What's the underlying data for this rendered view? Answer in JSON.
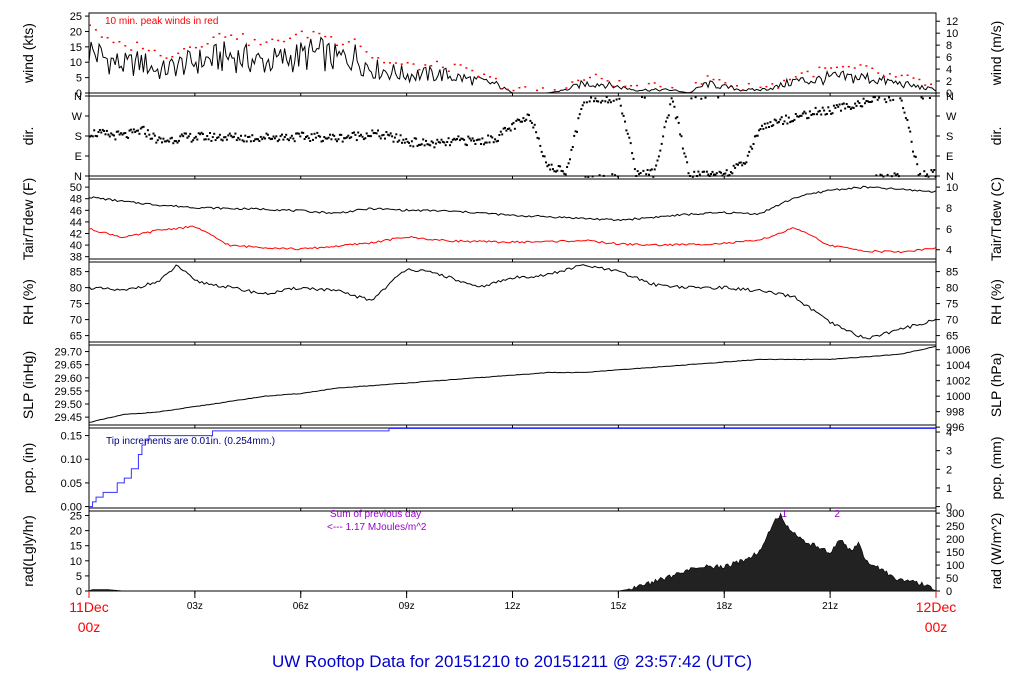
{
  "title": "UW Rooftop Data for 20151210  to  20151211 @ 23:57:42  (UTC)",
  "time_axis": {
    "ticks": [
      {
        "label": "11Dec",
        "label2": "00z",
        "hour": 0,
        "red": true
      },
      {
        "label": "03z",
        "hour": 3
      },
      {
        "label": "06z",
        "hour": 6
      },
      {
        "label": "09z",
        "hour": 9
      },
      {
        "label": "12z",
        "hour": 12
      },
      {
        "label": "15z",
        "hour": 15
      },
      {
        "label": "18z",
        "hour": 18
      },
      {
        "label": "21z",
        "hour": 21
      },
      {
        "label": "12Dec",
        "label2": "00z",
        "hour": 24,
        "red": true
      }
    ],
    "range_hours": [
      0,
      24
    ]
  },
  "colors": {
    "black": "#000000",
    "red": "#ff0000",
    "blue": "#3333ff",
    "purple": "#9900cc",
    "title_blue": "#0000cc"
  },
  "chart_data": [
    {
      "type": "line",
      "id": "wind",
      "ylabel": "wind (kts)",
      "ylabel_right": "wind (m/s)",
      "left_ticks": [
        0,
        5,
        10,
        15,
        20,
        25
      ],
      "right_ticks": [
        0,
        2,
        4,
        6,
        8,
        10,
        12
      ],
      "ylim": [
        0,
        26
      ],
      "right_factor": 0.5144,
      "annotation": "10 min. peak winds in red",
      "series": [
        {
          "values_by": "hour",
          "x": [
            0,
            0.5,
            1,
            1.5,
            2,
            2.5,
            3,
            3.5,
            4,
            4.5,
            5,
            5.5,
            6,
            6.5,
            7,
            7.5,
            8,
            8.5,
            9,
            9.5,
            10,
            10.5,
            11,
            11.5,
            12,
            12.5,
            13,
            13.5,
            14,
            14.5,
            15,
            15.5,
            16,
            16.5,
            17,
            17.5,
            18,
            18.5,
            19,
            19.5,
            20,
            20.5,
            21,
            21.5,
            22,
            22.5,
            23,
            23.5,
            24
          ],
          "values": [
            14,
            11,
            9,
            10,
            7,
            9,
            10,
            11,
            12,
            11,
            10,
            11,
            12,
            13,
            11,
            12,
            8,
            7,
            6,
            6,
            6,
            5,
            4,
            3,
            0,
            0,
            0,
            1,
            3,
            3,
            2,
            1,
            1,
            1,
            0,
            3,
            2,
            1,
            1,
            2,
            4,
            4,
            5,
            5,
            5,
            4,
            3,
            2,
            1
          ]
        },
        {
          "name": "",
          "color": "red",
          "x": [
            0,
            0.5,
            1,
            1.5,
            2,
            2.5,
            3,
            3.5,
            4,
            4.5,
            5,
            5.5,
            6,
            6.5,
            7,
            7.5,
            8,
            8.5,
            9,
            9.5,
            10,
            10.5,
            11,
            11.5,
            12,
            12.5,
            13,
            13.5,
            14,
            14.5,
            15,
            15.5,
            16,
            16.5,
            17,
            17.5,
            18,
            18.5,
            19,
            19.5,
            20,
            20.5,
            21,
            21.5,
            22,
            22.5,
            23,
            23.5,
            24
          ],
          "values": [
            23,
            17,
            15,
            16,
            12,
            14,
            16,
            18,
            20,
            17,
            16,
            18,
            19,
            20,
            17,
            18,
            12,
            10,
            9,
            9,
            9,
            8,
            6,
            4,
            1,
            1,
            1,
            2,
            5,
            5,
            3,
            2,
            2,
            2,
            1,
            5,
            4,
            2,
            2,
            3,
            6,
            7,
            8,
            8,
            8,
            6,
            5,
            4,
            2
          ]
        }
      ]
    },
    {
      "type": "scatter",
      "id": "dir",
      "ylabel": "dir.",
      "ylabel_right": "dir.",
      "left_ticks": [
        "N",
        "E",
        "S",
        "W",
        "N"
      ],
      "right_ticks": [
        "N",
        "E",
        "S",
        "W",
        "N"
      ],
      "ylim": [
        0,
        360
      ],
      "x": [
        0,
        0.5,
        1,
        1.5,
        2,
        2.5,
        3,
        3.5,
        4,
        4.5,
        5,
        5.5,
        6,
        6.5,
        7,
        7.5,
        8,
        8.5,
        9,
        9.5,
        10,
        10.5,
        11,
        11.5,
        12,
        12.5,
        13,
        13.5,
        14,
        14.5,
        15,
        15.5,
        16,
        16.5,
        17,
        17.5,
        18,
        18.5,
        19,
        19.5,
        20,
        20.5,
        21,
        21.5,
        22,
        22.5,
        23,
        23.5,
        24
      ],
      "values": [
        200,
        190,
        185,
        210,
        160,
        175,
        180,
        180,
        180,
        175,
        180,
        180,
        180,
        180,
        175,
        185,
        195,
        180,
        160,
        150,
        150,
        165,
        160,
        175,
        230,
        270,
        40,
        30,
        350,
        355,
        355,
        10,
        20,
        350,
        5,
        10,
        20,
        50,
        225,
        250,
        270,
        290,
        300,
        320,
        340,
        355,
        358,
        5,
        15
      ]
    },
    {
      "type": "line",
      "id": "temp",
      "ylabel": "Tair/Tdew (F)",
      "ylabel_right": "Tair/Tdew (C)",
      "left_ticks": [
        38,
        40,
        42,
        44,
        46,
        48,
        50
      ],
      "right_ticks": [
        4,
        6,
        8,
        10
      ],
      "ylim": [
        37.6,
        51.4
      ],
      "x": [
        0,
        1,
        2,
        3,
        4,
        5,
        6,
        7,
        8,
        9,
        10,
        11,
        12,
        13,
        14,
        15,
        16,
        17,
        18,
        19,
        20,
        21,
        22,
        23,
        24
      ],
      "series": [
        {
          "name": "",
          "color": "black",
          "values": [
            48.3,
            47.5,
            46.9,
            46.5,
            46.3,
            46.2,
            45.9,
            45.5,
            46.3,
            46.0,
            45.9,
            45.6,
            45.1,
            44.9,
            44.6,
            44.3,
            44.8,
            45.3,
            45.6,
            45.4,
            48.2,
            49.5,
            50.0,
            49.6,
            49.2
          ]
        },
        {
          "name": "",
          "color": "red",
          "values": [
            42.8,
            41.3,
            42.6,
            43.2,
            39.9,
            39.6,
            39.3,
            39.8,
            40.4,
            41.4,
            40.8,
            40.6,
            40.5,
            40.6,
            40.8,
            40.2,
            40.0,
            40.1,
            40.3,
            40.8,
            43.0,
            39.9,
            39.0,
            38.8,
            39.5
          ]
        }
      ]
    },
    {
      "type": "line",
      "id": "rh",
      "ylabel": "RH (%)",
      "ylabel_right": "RH (%)",
      "left_ticks": [
        65,
        70,
        75,
        80,
        85
      ],
      "right_ticks": [
        65,
        70,
        75,
        80,
        85
      ],
      "ylim": [
        63,
        88
      ],
      "x": [
        0,
        1,
        2,
        2.5,
        3,
        4,
        5,
        6,
        7,
        8,
        9,
        10,
        11,
        12,
        13,
        14,
        15,
        16,
        17,
        18,
        19,
        20,
        21,
        22,
        23,
        24
      ],
      "values": [
        80,
        79,
        82,
        87,
        82,
        80,
        78,
        80,
        79,
        76,
        86,
        84,
        80,
        83,
        84,
        87,
        85,
        81,
        80,
        80,
        79,
        77,
        69,
        64,
        67,
        70
      ]
    },
    {
      "type": "line",
      "id": "slp",
      "ylabel": "SLP (inHg)",
      "ylabel_right": "SLP (hPa)",
      "left_ticks": [
        "29.45",
        "29.50",
        "29.55",
        "29.60",
        "29.65",
        "29.70"
      ],
      "left_tick_values": [
        29.45,
        29.5,
        29.55,
        29.6,
        29.65,
        29.7
      ],
      "right_ticks": [
        996,
        998,
        1000,
        1002,
        1004,
        1006
      ],
      "ylim": [
        29.42,
        29.725
      ],
      "x": [
        0,
        1,
        2,
        3,
        4,
        5,
        6,
        7,
        8,
        9,
        10,
        11,
        12,
        13,
        14,
        15,
        16,
        17,
        18,
        19,
        20,
        21,
        22,
        23,
        24
      ],
      "values": [
        29.43,
        29.46,
        29.47,
        29.49,
        29.51,
        29.53,
        29.54,
        29.56,
        29.57,
        29.58,
        29.59,
        29.6,
        29.61,
        29.62,
        29.62,
        29.63,
        29.64,
        29.65,
        29.66,
        29.67,
        29.67,
        29.67,
        29.68,
        29.69,
        29.72
      ]
    },
    {
      "type": "line",
      "id": "pcp",
      "ylabel": "pcp. (in)",
      "ylabel_right": "pcp. (mm)",
      "left_ticks": [
        "0.00",
        "0.05",
        "0.10",
        "0.15"
      ],
      "left_tick_values": [
        0,
        0.05,
        0.1,
        0.15
      ],
      "right_ticks": [
        0,
        1,
        2,
        3,
        4
      ],
      "ylim": [
        -0.003,
        0.166
      ],
      "annotation": "Tip increments are 0.01in. (0.254mm.)",
      "color": "blue",
      "x": [
        0,
        0.1,
        0.2,
        0.4,
        0.8,
        1.0,
        1.2,
        1.4,
        1.5,
        1.6,
        1.7,
        1.9,
        3.5,
        4,
        8.5,
        24
      ],
      "values": [
        0,
        0.01,
        0.02,
        0.03,
        0.05,
        0.06,
        0.08,
        0.11,
        0.13,
        0.14,
        0.15,
        0.15,
        0.16,
        0.16,
        0.17,
        0.17
      ]
    },
    {
      "type": "area",
      "id": "rad",
      "ylabel": "rad(Lgly/hr)",
      "ylabel_right": "rad (W/m^2)",
      "left_ticks": [
        0,
        5,
        10,
        15,
        20,
        25
      ],
      "right_ticks": [
        0,
        50,
        100,
        150,
        200,
        250,
        300
      ],
      "ylim": [
        0,
        26.5
      ],
      "annotation_lines": [
        "Sum of previous day",
        "<--- 1.17 MJoules/m^2"
      ],
      "markers": [
        {
          "label": "1",
          "hour": 19.7
        },
        {
          "label": "2",
          "hour": 21.2
        }
      ],
      "x": [
        0,
        0.1,
        0.5,
        1,
        1.5,
        15,
        15.5,
        16,
        16.5,
        17,
        17.5,
        18,
        18.5,
        19,
        19.4,
        19.6,
        19.8,
        20,
        20.3,
        20.6,
        21,
        21.3,
        21.6,
        21.8,
        22,
        22.3,
        22.6,
        22.9,
        23.3,
        23.7,
        24
      ],
      "values": [
        0,
        0.5,
        0.5,
        0,
        0,
        0,
        1,
        3,
        5,
        7,
        8,
        8,
        10,
        13,
        23,
        25,
        21,
        19,
        16,
        15,
        13,
        17,
        13,
        16,
        10,
        8,
        6,
        4,
        3,
        2,
        0
      ]
    }
  ]
}
